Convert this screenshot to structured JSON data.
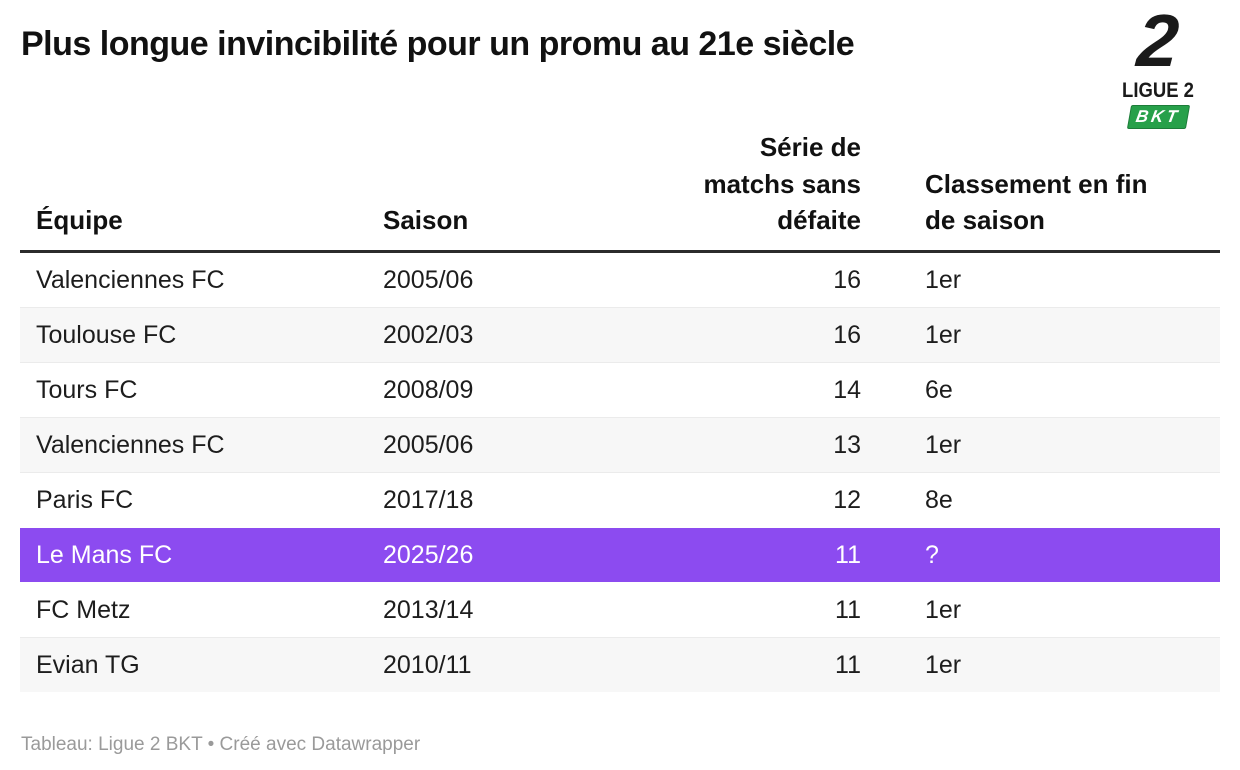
{
  "chart_data": {
    "type": "table",
    "title": "Plus longue invincibilité pour un promu au 21e siècle",
    "columns": [
      "Équipe",
      "Saison",
      "Série de matchs sans défaite",
      "Classement en fin de saison"
    ],
    "rows": [
      [
        "Valenciennes FC",
        "2005/06",
        16,
        "1er"
      ],
      [
        "Toulouse FC",
        "2002/03",
        16,
        "1er"
      ],
      [
        "Tours FC",
        "2008/09",
        14,
        "6e"
      ],
      [
        "Valenciennes FC",
        "2005/06",
        13,
        "1er"
      ],
      [
        "Paris FC",
        "2017/18",
        12,
        "8e"
      ],
      [
        "Le Mans FC",
        "2025/26",
        11,
        "?"
      ],
      [
        "FC Metz",
        "2013/14",
        11,
        "1er"
      ],
      [
        "Evian TG",
        "2010/11",
        11,
        "1er"
      ]
    ],
    "highlighted_row_index": 5,
    "highlighted_team": "Le Mans FC",
    "highlight_color": "#8c4bf0",
    "stripe_color": "#f7f7f7",
    "source_note": "Tableau: Ligue 2 BKT • Créé avec Datawrapper",
    "legend_position": "none",
    "grid": "horizontal-row-dividers"
  },
  "logo": {
    "numeral": "2",
    "wordmark": "LIGUE 2",
    "sponsor": "BKT",
    "sponsor_color": "#27a04a"
  }
}
